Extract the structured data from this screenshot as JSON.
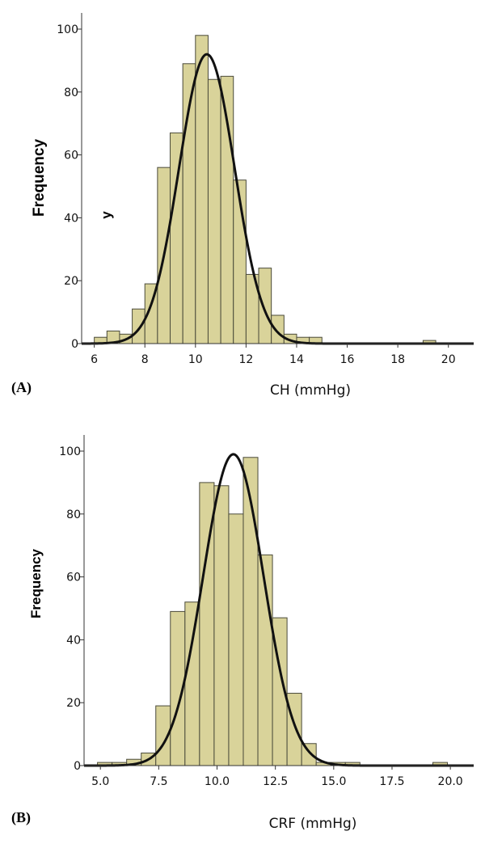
{
  "chart_data": [
    {
      "type": "bar",
      "panel_label": "(A)",
      "xlabel": "CH (mmHg)",
      "ylabel": "Frequency",
      "stray_label": "y",
      "bin_width": 0.5,
      "bins": [
        {
          "x0": 6.0,
          "count": 2
        },
        {
          "x0": 6.5,
          "count": 4
        },
        {
          "x0": 7.0,
          "count": 3
        },
        {
          "x0": 7.5,
          "count": 11
        },
        {
          "x0": 8.0,
          "count": 19
        },
        {
          "x0": 8.5,
          "count": 56
        },
        {
          "x0": 9.0,
          "count": 67
        },
        {
          "x0": 9.5,
          "count": 89
        },
        {
          "x0": 10.0,
          "count": 98
        },
        {
          "x0": 10.5,
          "count": 84
        },
        {
          "x0": 11.0,
          "count": 85
        },
        {
          "x0": 11.5,
          "count": 52
        },
        {
          "x0": 12.0,
          "count": 22
        },
        {
          "x0": 12.5,
          "count": 24
        },
        {
          "x0": 13.0,
          "count": 9
        },
        {
          "x0": 13.5,
          "count": 3
        },
        {
          "x0": 14.0,
          "count": 2
        },
        {
          "x0": 14.5,
          "count": 2
        },
        {
          "x0": 19.0,
          "count": 1
        }
      ],
      "normal_curve": {
        "mean": 10.45,
        "sd": 1.1,
        "peak": 92
      },
      "xlim": [
        5.5,
        21
      ],
      "ylim": [
        0,
        100
      ],
      "xticks": [
        6,
        8,
        10,
        12,
        14,
        16,
        18,
        20
      ],
      "xtick_labels": [
        "6",
        "8",
        "10",
        "12",
        "14",
        "16",
        "18",
        "20"
      ],
      "yticks": [
        0,
        20,
        40,
        60,
        80,
        100
      ],
      "ytick_labels": [
        "0",
        "20",
        "40",
        "60",
        "80",
        "100"
      ]
    },
    {
      "type": "bar",
      "panel_label": "(B)",
      "xlabel": "CRF (mmHg)",
      "ylabel": "Frequency",
      "bin_width": 0.625,
      "bins": [
        {
          "x0": 4.875,
          "count": 1
        },
        {
          "x0": 5.5,
          "count": 1
        },
        {
          "x0": 6.125,
          "count": 2
        },
        {
          "x0": 6.75,
          "count": 4
        },
        {
          "x0": 7.375,
          "count": 19
        },
        {
          "x0": 8.0,
          "count": 49
        },
        {
          "x0": 8.625,
          "count": 52
        },
        {
          "x0": 9.25,
          "count": 90
        },
        {
          "x0": 9.875,
          "count": 89
        },
        {
          "x0": 10.5,
          "count": 80
        },
        {
          "x0": 11.125,
          "count": 98
        },
        {
          "x0": 11.75,
          "count": 67
        },
        {
          "x0": 12.375,
          "count": 47
        },
        {
          "x0": 13.0,
          "count": 23
        },
        {
          "x0": 13.625,
          "count": 7
        },
        {
          "x0": 14.25,
          "count": 1
        },
        {
          "x0": 14.875,
          "count": 1
        },
        {
          "x0": 15.5,
          "count": 1
        },
        {
          "x0": 19.25,
          "count": 1
        }
      ],
      "normal_curve": {
        "mean": 10.7,
        "sd": 1.3,
        "peak": 99
      },
      "xlim": [
        4.3,
        21
      ],
      "ylim": [
        0,
        100
      ],
      "xticks": [
        5,
        7.5,
        10,
        12.5,
        15,
        17.5,
        20
      ],
      "xtick_labels": [
        "5.0",
        "7.5",
        "10.0",
        "12.5",
        "15.0",
        "17.5",
        "20.0"
      ],
      "yticks": [
        0,
        20,
        40,
        60,
        80,
        100
      ],
      "ytick_labels": [
        "0",
        "20",
        "40",
        "60",
        "80",
        "100"
      ]
    }
  ]
}
